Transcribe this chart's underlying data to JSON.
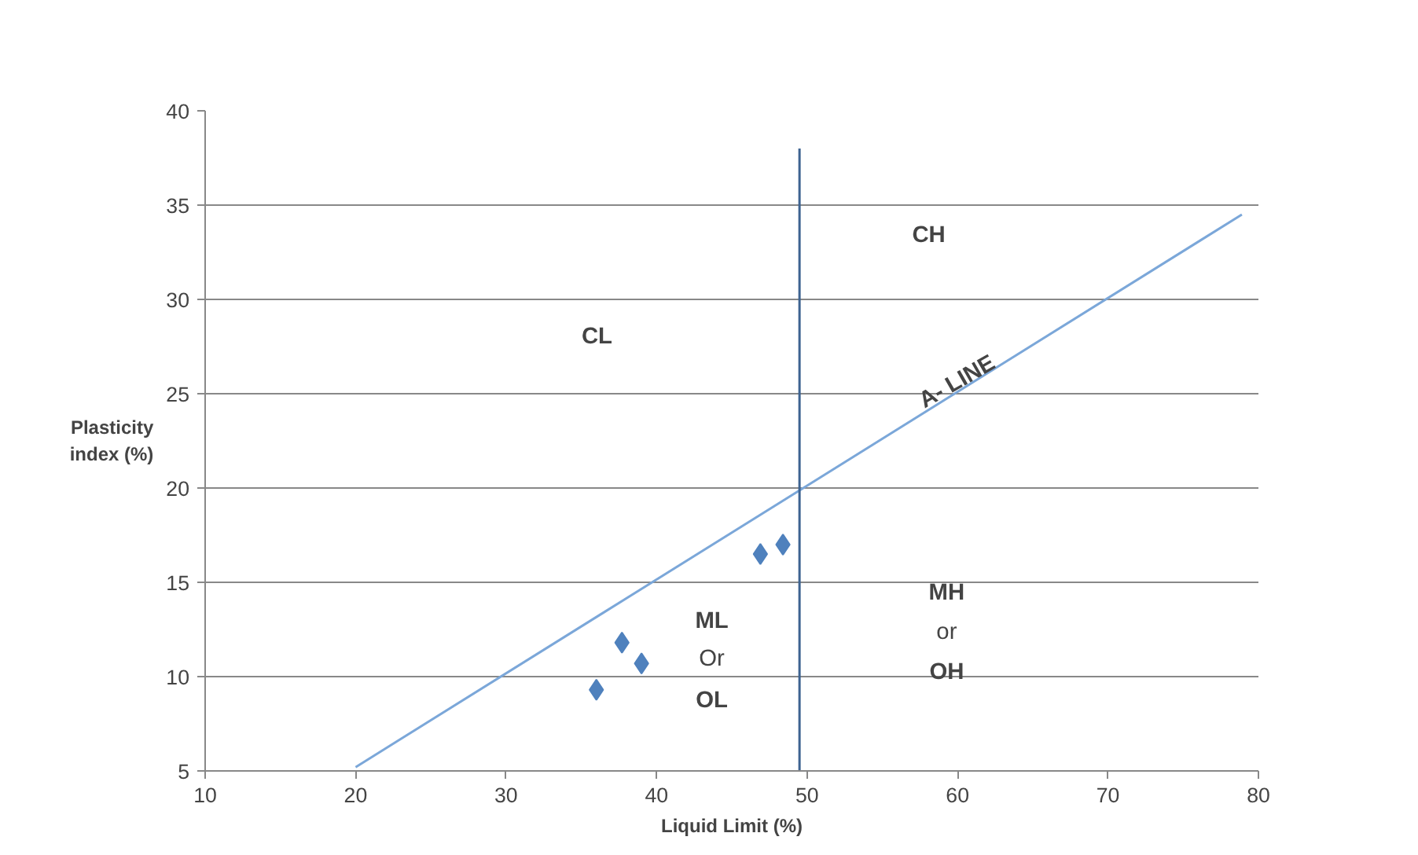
{
  "chart_data": {
    "type": "scatter",
    "xlabel": "Liquid Limit (%)",
    "ylabel": "Plasticity\nindex (%)",
    "xlim": [
      10,
      80
    ],
    "xticks": [
      10,
      20,
      30,
      40,
      50,
      60,
      70,
      80
    ],
    "ylim": [
      5,
      40
    ],
    "yticks": [
      5,
      10,
      15,
      20,
      25,
      30,
      35,
      40
    ],
    "grid": "y",
    "series": [
      {
        "color": "#4f81bd",
        "marker": "diamond",
        "x": [
          36.0,
          37.7,
          39.0,
          46.9,
          48.4
        ],
        "values": [
          9.3,
          11.8,
          10.7,
          16.5,
          17.0
        ]
      },
      {
        "type": "line",
        "marker": "none",
        "color": "#7ba7d9",
        "x": [
          20,
          78.9
        ],
        "values": [
          5.2,
          34.5
        ]
      },
      {
        "type": "line",
        "marker": "none",
        "color": "#3d6391",
        "x": [
          49.5,
          49.5
        ],
        "values": [
          5,
          38
        ]
      }
    ],
    "annotations": [
      "CL",
      "CH",
      {
        "text": "A- LINE",
        "x": 60.0,
        "y": 25.6
      },
      "ML",
      "Or",
      "OL",
      "MH",
      "or",
      "OH"
    ]
  }
}
